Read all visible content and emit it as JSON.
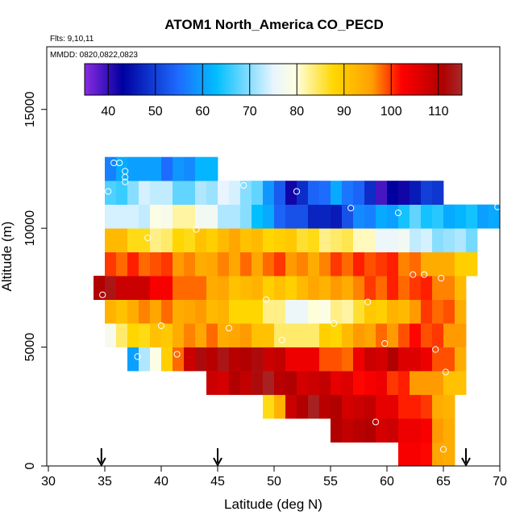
{
  "chart_data": {
    "type": "heatmap",
    "title": "ATOM1 North_America CO_PECD",
    "notes": [
      "Flts: 9,10,11",
      "MMDD: 0820,0822,0823"
    ],
    "xlabel": "Latitude (deg N)",
    "ylabel": "Altitude (m)",
    "xlim": [
      30,
      70
    ],
    "ylim": [
      0,
      17500
    ],
    "x_ticks": [
      "30",
      "35",
      "40",
      "45",
      "50",
      "55",
      "60",
      "65",
      "70"
    ],
    "y_ticks": [
      "0",
      "5000",
      "10000",
      "15000"
    ],
    "colorbar": {
      "range": [
        35,
        115
      ],
      "ticks": [
        "40",
        "50",
        "60",
        "70",
        "80",
        "90",
        "100",
        "110"
      ],
      "colors": [
        "#8a2be2",
        "#0000a0",
        "#1e6cff",
        "#00bfff",
        "#e8f4ff",
        "#ffffe0",
        "#ffd700",
        "#ffa000",
        "#ff0000",
        "#b00000",
        "#a52a2a"
      ]
    },
    "bands": [
      {
        "y_from": 0,
        "y_to": 1000,
        "x_from": 61,
        "x_to": 66,
        "values": [
          105,
          103,
          100,
          96,
          93
        ]
      },
      {
        "y_from": 1000,
        "y_to": 2000,
        "x_from": 55,
        "x_to": 66,
        "values": [
          110,
          111,
          110,
          109,
          108,
          107,
          106,
          104,
          101,
          97,
          93
        ]
      },
      {
        "y_from": 2000,
        "y_to": 3000,
        "x_from": 49,
        "x_to": 66,
        "values": [
          88,
          92,
          110,
          111,
          112,
          111,
          110,
          109,
          108,
          107,
          106,
          104,
          103,
          101,
          98,
          95,
          92
        ]
      },
      {
        "y_from": 3000,
        "y_to": 4000,
        "x_from": 44,
        "x_to": 67,
        "values": [
          106,
          108,
          110,
          111,
          112,
          112,
          111,
          110,
          109,
          108,
          107,
          106,
          105,
          104,
          103,
          102,
          101,
          100,
          98,
          96,
          94,
          92,
          90
        ]
      },
      {
        "y_from": 4000,
        "y_to": 5000,
        "x_from": 37,
        "x_to": 67,
        "values": [
          60,
          70,
          80,
          88,
          100,
          108,
          110,
          111,
          112,
          112,
          111,
          110,
          109,
          108,
          106,
          104,
          102,
          100,
          98,
          100,
          104,
          106,
          108,
          110,
          108,
          106,
          102,
          100,
          98,
          96
        ]
      },
      {
        "y_from": 5000,
        "y_to": 6000,
        "x_from": 35,
        "x_to": 67,
        "values": [
          80,
          84,
          86,
          88,
          90,
          92,
          94,
          95,
          96,
          97,
          96,
          95,
          94,
          92,
          90,
          86,
          84,
          82,
          85,
          88,
          90,
          92,
          94,
          96,
          97,
          98,
          99,
          100,
          100,
          99,
          98,
          96
        ]
      },
      {
        "y_from": 6000,
        "y_to": 7000,
        "x_from": 35,
        "x_to": 67,
        "values": [
          92,
          93,
          94,
          95,
          96,
          97,
          96,
          95,
          94,
          93,
          92,
          90,
          88,
          86,
          84,
          82,
          78,
          76,
          78,
          80,
          82,
          84,
          86,
          88,
          90,
          92,
          94,
          96,
          98,
          99,
          98,
          96
        ]
      },
      {
        "y_from": 7000,
        "y_to": 8000,
        "x_from": 34,
        "x_to": 67,
        "values": [
          112,
          112,
          110,
          108,
          106,
          104,
          102,
          100,
          98,
          96,
          95,
          94,
          93,
          92,
          91,
          90,
          90,
          91,
          92,
          93,
          94,
          95,
          96,
          97,
          98,
          99,
          100,
          100,
          100,
          99,
          98,
          96,
          94
        ]
      },
      {
        "y_from": 8000,
        "y_to": 9000,
        "x_from": 35,
        "x_to": 68,
        "values": [
          98,
          99,
          100,
          100,
          99,
          98,
          97,
          96,
          96,
          95,
          95,
          96,
          97,
          97,
          98,
          98,
          97,
          96,
          96,
          97,
          98,
          99,
          100,
          101,
          100,
          99,
          98,
          97,
          96,
          94,
          92,
          90,
          88
        ]
      },
      {
        "y_from": 9000,
        "y_to": 10000,
        "x_from": 35,
        "x_to": 68,
        "values": [
          92,
          90,
          88,
          86,
          85,
          84,
          86,
          88,
          90,
          91,
          92,
          93,
          92,
          91,
          90,
          89,
          88,
          87,
          86,
          85,
          84,
          83,
          82,
          80,
          78,
          76,
          75,
          74,
          73,
          72,
          71,
          70,
          70
        ]
      },
      {
        "y_from": 10000,
        "y_to": 11000,
        "x_from": 35,
        "x_to": 70,
        "values": [
          76,
          74,
          72,
          74,
          78,
          80,
          82,
          80,
          78,
          76,
          74,
          72,
          68,
          64,
          60,
          56,
          52,
          50,
          48,
          46,
          48,
          52,
          56,
          58,
          60,
          62,
          64,
          66,
          65,
          64,
          63,
          62,
          62,
          61,
          60
        ]
      },
      {
        "y_from": 11000,
        "y_to": 12000,
        "x_from": 35,
        "x_to": 65,
        "values": [
          66,
          68,
          70,
          72,
          74,
          72,
          70,
          68,
          70,
          72,
          74,
          76,
          70,
          66,
          60,
          52,
          44,
          48,
          52,
          56,
          60,
          58,
          54,
          46,
          40,
          42,
          44,
          46,
          48,
          50
        ]
      },
      {
        "y_from": 12000,
        "y_to": 13000,
        "x_from": 35,
        "x_to": 45,
        "values": [
          58,
          60,
          62,
          60,
          58,
          56,
          58,
          60,
          62,
          60
        ]
      }
    ],
    "sample_points": [
      {
        "x": 34.8,
        "y": 7200
      },
      {
        "x": 35.8,
        "y": 12750
      },
      {
        "x": 36.3,
        "y": 12750
      },
      {
        "x": 36.8,
        "y": 12400
      },
      {
        "x": 36.8,
        "y": 12150
      },
      {
        "x": 36.8,
        "y": 11950
      },
      {
        "x": 35.3,
        "y": 11550
      },
      {
        "x": 37.9,
        "y": 4600
      },
      {
        "x": 38.8,
        "y": 9600
      },
      {
        "x": 40.0,
        "y": 5900
      },
      {
        "x": 41.4,
        "y": 4700
      },
      {
        "x": 43.1,
        "y": 9950
      },
      {
        "x": 46.0,
        "y": 5800
      },
      {
        "x": 47.3,
        "y": 11800
      },
      {
        "x": 49.3,
        "y": 7000
      },
      {
        "x": 50.7,
        "y": 5300
      },
      {
        "x": 52.0,
        "y": 11550
      },
      {
        "x": 55.3,
        "y": 6000
      },
      {
        "x": 56.8,
        "y": 10850
      },
      {
        "x": 58.3,
        "y": 6900
      },
      {
        "x": 59.0,
        "y": 1850
      },
      {
        "x": 59.8,
        "y": 5150
      },
      {
        "x": 61.0,
        "y": 10650
      },
      {
        "x": 62.3,
        "y": 8050
      },
      {
        "x": 63.3,
        "y": 8050
      },
      {
        "x": 64.8,
        "y": 7900
      },
      {
        "x": 64.3,
        "y": 4900
      },
      {
        "x": 65.2,
        "y": 3950
      },
      {
        "x": 65.0,
        "y": 700
      },
      {
        "x": 69.8,
        "y": 10900
      }
    ],
    "arrows_lat": [
      34.7,
      45.0,
      67.0
    ]
  }
}
